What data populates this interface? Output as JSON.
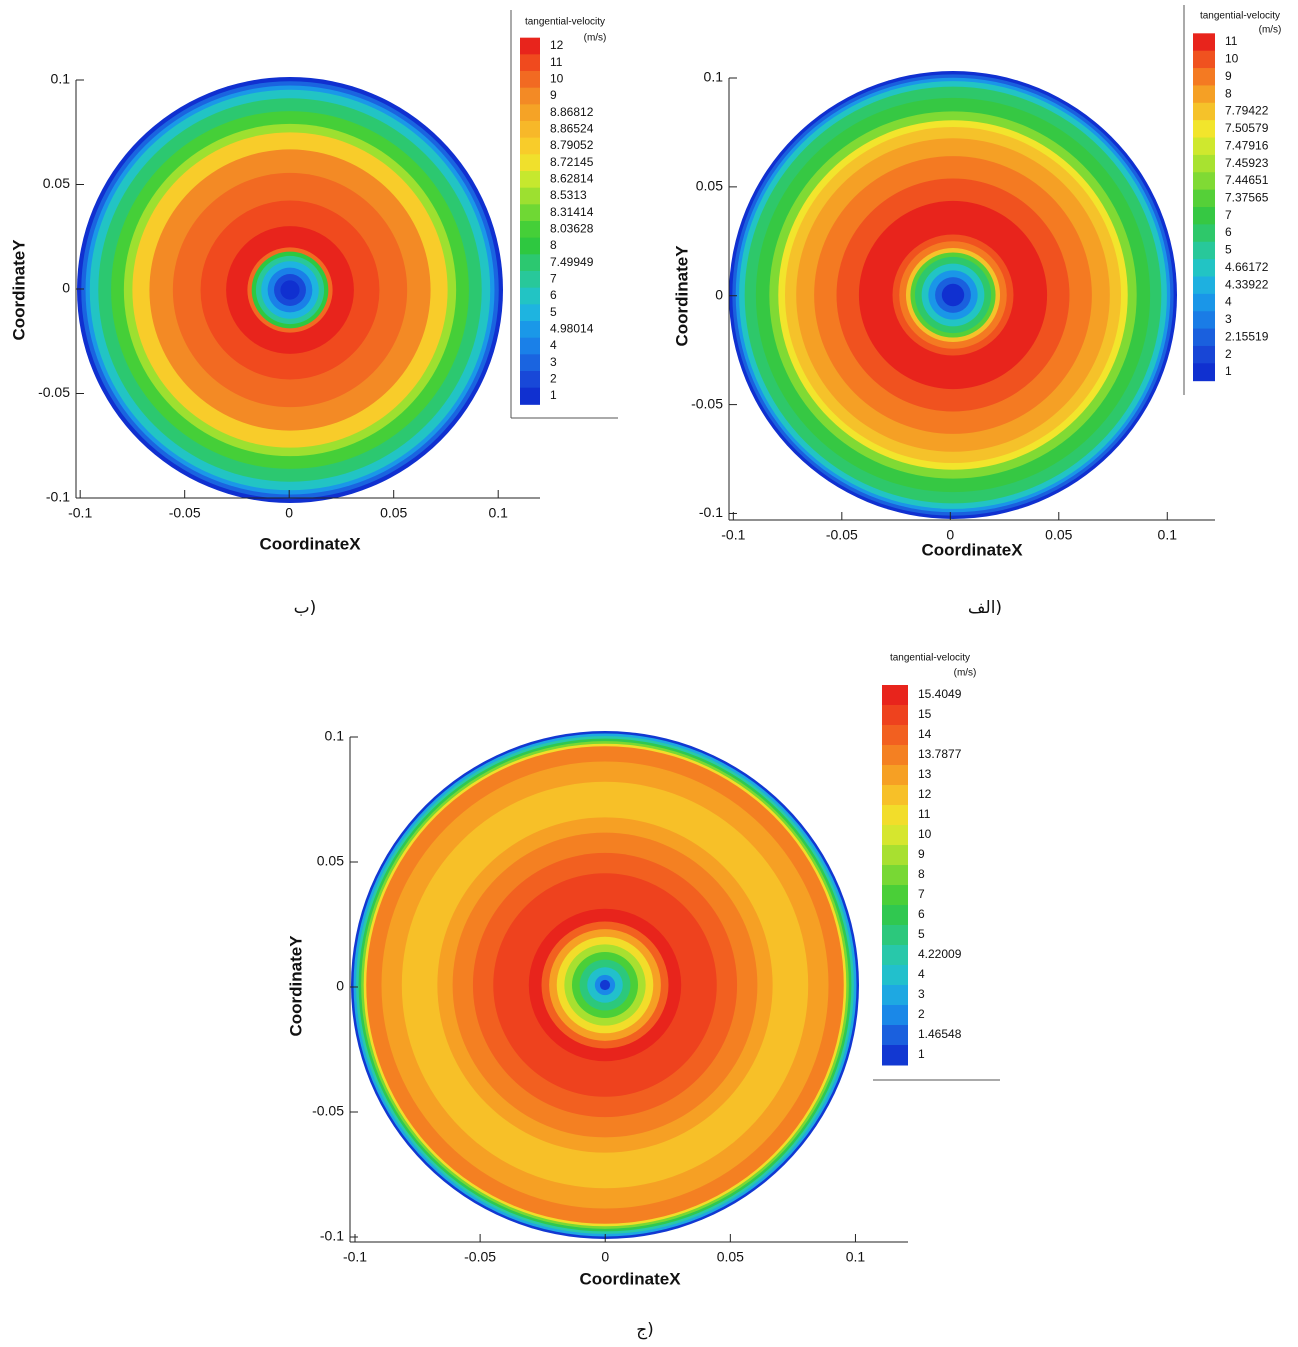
{
  "chart_data": [
    {
      "type": "contour",
      "caption": "(ب",
      "legend_title": "tangential-velocity",
      "legend_unit": "(m/s)",
      "xlabel": "CoordinateX",
      "ylabel": "CoordinateY",
      "xlim": [
        -0.102,
        0.12
      ],
      "ylim": [
        -0.1,
        0.1
      ],
      "xticks": [
        -0.1,
        -0.05,
        0,
        0.05,
        0.1
      ],
      "yticks": [
        -0.1,
        -0.05,
        0,
        0.05,
        0.1
      ],
      "levels": [
        12,
        11,
        10,
        9,
        8.86812,
        8.86524,
        8.79052,
        8.72145,
        8.62814,
        8.5313,
        8.31414,
        8.03628,
        8,
        7.49949,
        7,
        6,
        5,
        4.98014,
        4,
        3,
        2,
        1
      ],
      "colors": [
        "#e8241c",
        "#f04a1e",
        "#f26a22",
        "#f38a25",
        "#f5a326",
        "#f7b829",
        "#f8cc2a",
        "#f0e02c",
        "#c6e82e",
        "#9de030",
        "#6fd834",
        "#45cf38",
        "#2ec840",
        "#2cc870",
        "#28c89a",
        "#22c4c4",
        "#1eb4e0",
        "#1a98e8",
        "#1a80e8",
        "#1a64e0",
        "#1848d8",
        "#1030d0"
      ]
    },
    {
      "type": "contour",
      "caption": "(الف",
      "legend_title": "tangential-velocity",
      "legend_unit": "(m/s)",
      "xlabel": "CoordinateX",
      "ylabel": "CoordinateY",
      "xlim": [
        -0.102,
        0.122
      ],
      "ylim": [
        -0.103,
        0.1
      ],
      "xticks": [
        -0.1,
        -0.05,
        0,
        0.05,
        0.1
      ],
      "yticks": [
        -0.1,
        -0.05,
        0,
        0.05,
        0.1
      ],
      "levels": [
        11,
        10,
        9,
        8,
        7.79422,
        7.50579,
        7.47916,
        7.45923,
        7.44651,
        7.37565,
        7,
        6,
        5,
        4.66172,
        4.33922,
        4,
        3,
        2.15519,
        2,
        1
      ],
      "colors": [
        "#e8241c",
        "#f0521f",
        "#f47a22",
        "#f5a025",
        "#f5c22a",
        "#f2e52c",
        "#cfe82e",
        "#a8e230",
        "#80da34",
        "#55d038",
        "#36c843",
        "#2ec86a",
        "#28c89a",
        "#22c4c4",
        "#1eb0e0",
        "#1a96e8",
        "#1a7ce6",
        "#1a60de",
        "#1846d6",
        "#1030d0"
      ]
    },
    {
      "type": "contour",
      "caption": "(ج",
      "legend_title": "tangential-velocity",
      "legend_unit": "(m/s)",
      "xlabel": "CoordinateX",
      "ylabel": "CoordinateY",
      "xlim": [
        -0.102,
        0.121
      ],
      "ylim": [
        -0.102,
        0.1
      ],
      "xticks": [
        -0.1,
        -0.05,
        0,
        0.05,
        0.1
      ],
      "yticks": [
        -0.1,
        -0.05,
        0,
        0.05,
        0.1
      ],
      "levels": [
        15.4049,
        15,
        14,
        13.7877,
        13,
        12,
        11,
        10,
        9,
        8,
        7,
        6,
        5,
        4.22009,
        4,
        3,
        2,
        1.46548,
        1
      ],
      "colors": [
        "#e8241c",
        "#ee421e",
        "#f26020",
        "#f48022",
        "#f6a024",
        "#f7c028",
        "#f2dd2a",
        "#d6e62e",
        "#a8e030",
        "#78d834",
        "#4acf38",
        "#30c850",
        "#2cc87c",
        "#28c8aa",
        "#22c0cc",
        "#1ea8e2",
        "#1a88e8",
        "#1a60de",
        "#1238d2"
      ]
    }
  ]
}
